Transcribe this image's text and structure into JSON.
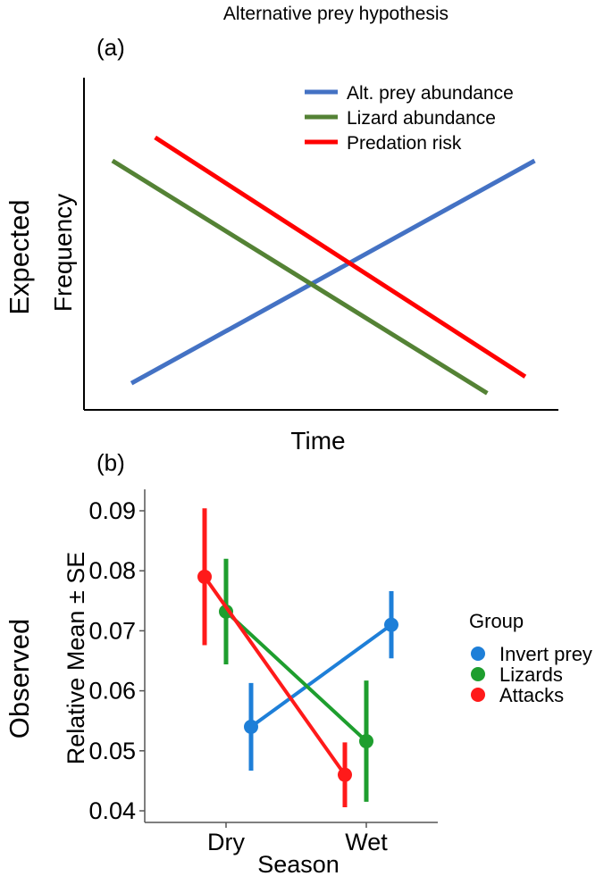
{
  "title": "Alternative prey hypothesis",
  "colors": {
    "alt_prey": "#4472C4",
    "lizard_a": "#548235",
    "predation": "#FF0000",
    "invert": "#1E7FD8",
    "lizards_b": "#1E9E2E",
    "attacks": "#FF1A1A",
    "axis": "#000000"
  },
  "chart_data": [
    {
      "type": "line",
      "panel_label": "(a)",
      "side_label": "Expected",
      "xlabel": "Time",
      "ylabel": "Frequency",
      "xlim": [
        0,
        10
      ],
      "ylim": [
        0,
        10
      ],
      "grid": false,
      "legend_position": "top-right",
      "series": [
        {
          "name": "Alt. prey abundance",
          "color_key": "alt_prey",
          "x": [
            1,
            9.5
          ],
          "y": [
            0.8,
            7.5
          ]
        },
        {
          "name": "Lizard abundance",
          "color_key": "lizard_a",
          "x": [
            0.6,
            8.5
          ],
          "y": [
            7.5,
            0.5
          ]
        },
        {
          "name": "Predation risk",
          "color_key": "predation",
          "x": [
            1.5,
            9.3
          ],
          "y": [
            8.2,
            1.0
          ]
        }
      ]
    },
    {
      "type": "line",
      "panel_label": "(b)",
      "side_label": "Observed",
      "xlabel": "Season",
      "ylabel": "Relative Mean ± SE",
      "categories": [
        "Dry",
        "Wet"
      ],
      "ylim": [
        0.04,
        0.092
      ],
      "yticks": [
        "0.04",
        "0.05",
        "0.06",
        "0.07",
        "0.08",
        "0.09"
      ],
      "grid": false,
      "legend_title": "Group",
      "legend_position": "right",
      "series": [
        {
          "name": "Invert prey",
          "color_key": "invert",
          "values": [
            0.054,
            0.071
          ],
          "se": [
            0.0073,
            0.0056
          ]
        },
        {
          "name": "Lizards",
          "color_key": "lizards_b",
          "values": [
            0.0732,
            0.0516
          ],
          "se": [
            0.0088,
            0.0101
          ]
        },
        {
          "name": "Attacks",
          "color_key": "attacks",
          "values": [
            0.079,
            0.046
          ],
          "se": [
            0.0114,
            0.0054
          ]
        }
      ]
    }
  ]
}
